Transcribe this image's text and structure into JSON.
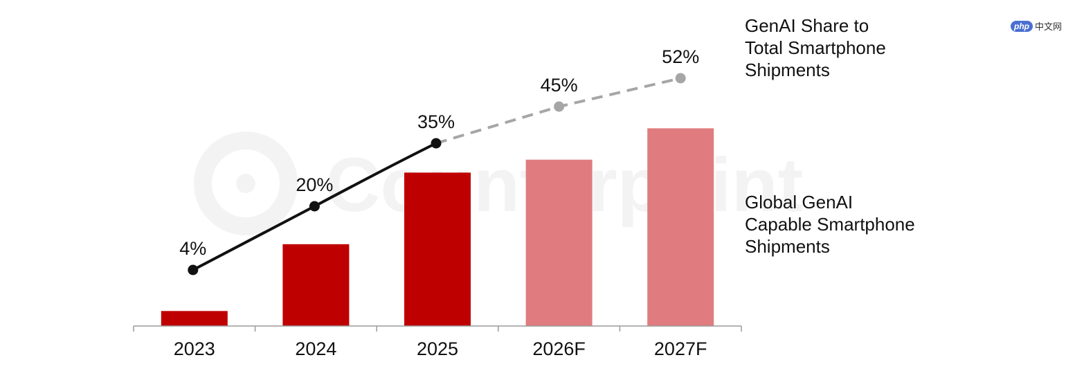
{
  "watermark": {
    "text": "Counterpoint"
  },
  "site_badge": {
    "logo": "php",
    "text": "中文网"
  },
  "colors": {
    "actual_bar": "#bf0000",
    "forecast_bar": "#e07c7f",
    "actual_line": "#111111",
    "forecast_line": "#a6a6a6",
    "axis": "#9a9a9a"
  },
  "chart_data": {
    "type": "bar",
    "categories": [
      "2023",
      "2024",
      "2025",
      "2026F",
      "2027F"
    ],
    "series": [
      {
        "name": "Global GenAI Capable Smartphone Shipments",
        "kind": "bar",
        "values": [
          22,
          120,
          225,
          244,
          290
        ],
        "forecast": [
          false,
          false,
          false,
          true,
          true
        ]
      },
      {
        "name": "GenAI Share to Total Smartphone Shipments",
        "kind": "line",
        "values": [
          4,
          20,
          35,
          45,
          52
        ],
        "labels": [
          "4%",
          "20%",
          "35%",
          "45%",
          "52%"
        ],
        "forecast": [
          false,
          false,
          false,
          true,
          true
        ]
      }
    ],
    "legend": [
      {
        "lines": [
          "GenAI Share to",
          "Total Smartphone",
          "Shipments"
        ]
      },
      {
        "lines": [
          "Global GenAI",
          "Capable Smartphone",
          "Shipments"
        ]
      }
    ],
    "legend_position": "right",
    "grid": false,
    "ylim": [
      0,
      330
    ]
  }
}
